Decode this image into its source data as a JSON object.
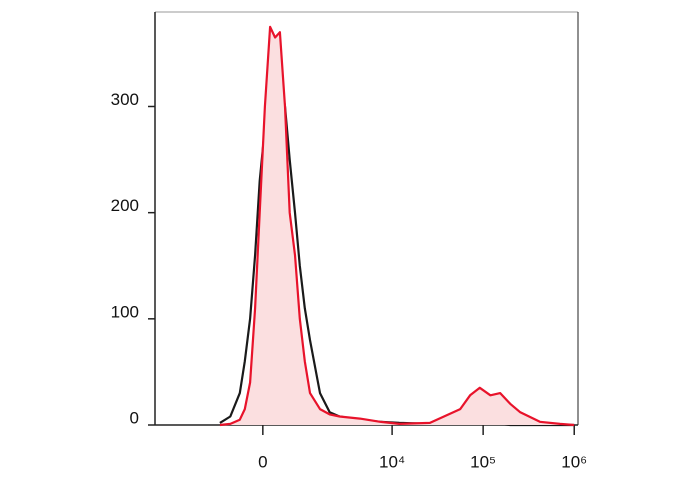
{
  "chart_data": {
    "type": "line",
    "xscale": "biexponential",
    "x": [
      -1000,
      -700,
      -470,
      -360,
      -250,
      -150,
      -60,
      40,
      140,
      240,
      340,
      450,
      560,
      690,
      820,
      970,
      1140,
      1530,
      2000,
      2600,
      4400,
      7400,
      12000,
      26000,
      56000,
      72000,
      92000,
      120000,
      154000,
      198000,
      256000,
      420000,
      700000,
      1000000
    ],
    "series": [
      {
        "color": "#1a1a1a",
        "fill": false,
        "values": [
          2,
          8,
          30,
          60,
          100,
          160,
          230,
          280,
          320,
          340,
          330,
          300,
          250,
          200,
          150,
          110,
          80,
          30,
          12,
          8,
          5,
          3,
          2,
          1,
          1,
          1,
          1,
          1,
          1,
          0,
          0,
          0,
          0,
          0
        ]
      },
      {
        "color": "#e8132b",
        "fill": true,
        "values": [
          0,
          1,
          5,
          15,
          40,
          110,
          200,
          300,
          375,
          365,
          370,
          300,
          200,
          160,
          100,
          60,
          30,
          15,
          10,
          8,
          6,
          3,
          1,
          2,
          15,
          28,
          35,
          28,
          30,
          20,
          12,
          3,
          1,
          0
        ]
      }
    ],
    "xlim": [
      -5800,
      1100000
    ],
    "xticks": [
      0,
      {
        "value": 10000,
        "label": "10⁴"
      },
      {
        "value": 100000,
        "label": "10⁵"
      },
      {
        "value": 1000000,
        "label": "10⁶"
      }
    ],
    "ylim": [
      0,
      389
    ],
    "yticks": [
      0,
      100,
      200,
      300
    ]
  }
}
